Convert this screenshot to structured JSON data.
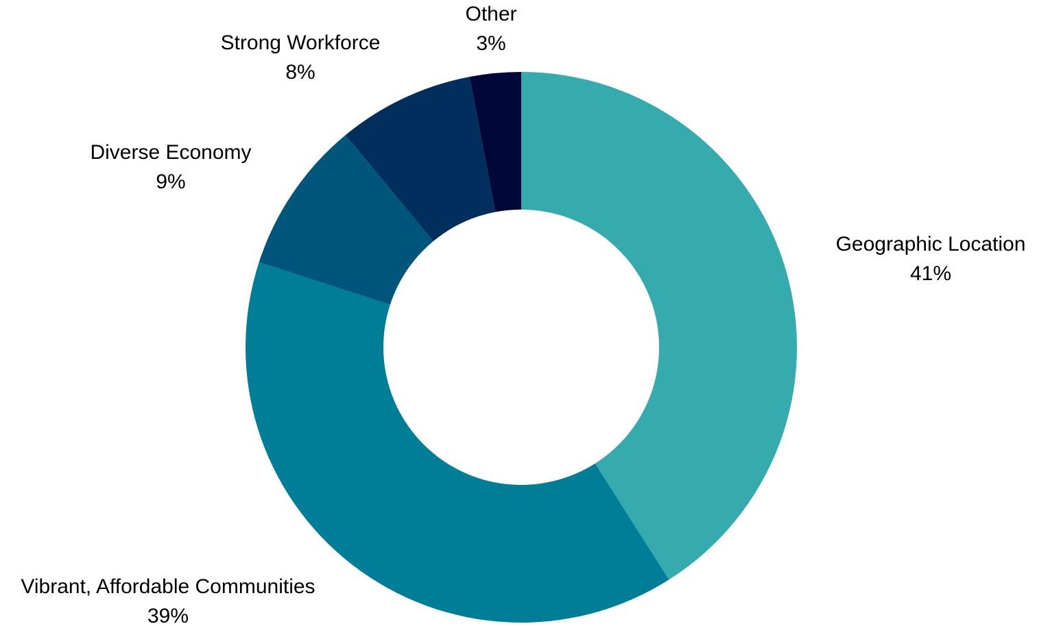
{
  "chart_data": {
    "type": "pie",
    "variant": "donut",
    "title": "",
    "start_angle": "12 o'clock",
    "direction": "clockwise",
    "legend": "none (slices labelled directly)",
    "slices": [
      {
        "name": "Geographic Location",
        "value": 41,
        "label": "41%",
        "color": "#36abae"
      },
      {
        "name": "Vibrant, Affordable Communities",
        "value": 39,
        "label": "39%",
        "color": "#007e98"
      },
      {
        "name": "Diverse Economy",
        "value": 9,
        "label": "9%",
        "color": "#00557a"
      },
      {
        "name": "Strong Workforce",
        "value": 8,
        "label": "8%",
        "color": "#002f5d"
      },
      {
        "name": "Other",
        "value": 3,
        "label": "3%",
        "color": "#00083a"
      }
    ]
  }
}
